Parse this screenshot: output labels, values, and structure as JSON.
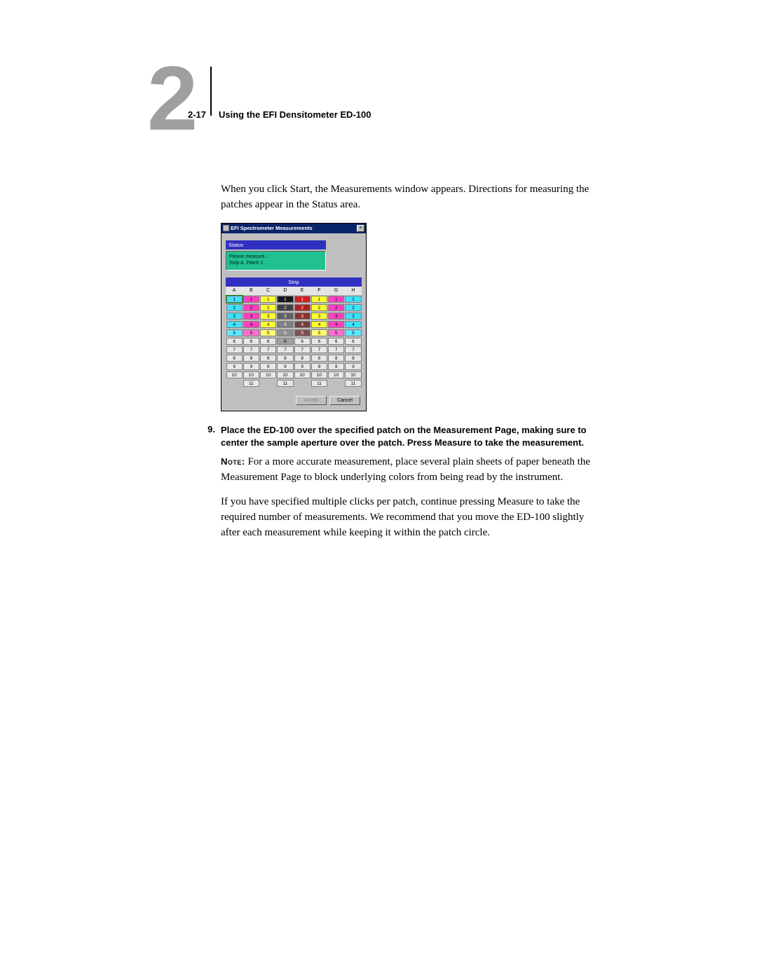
{
  "header": {
    "chapter_number": "2",
    "page_ref": "2-17",
    "title": "Using the EFI Densitometer ED-100"
  },
  "body": {
    "intro": "When you click Start, the Measurements window appears. Directions for measuring the patches appear in the Status area.",
    "step_number": "9.",
    "step_text": "Place the ED-100 over the specified patch on the Measurement Page, making sure to center the sample aperture over the patch. Press Measure to take the measurement.",
    "note_label": "Note:",
    "note_text": " For a more accurate measurement, place several plain sheets of paper beneath the Measurement Page to block underlying colors from being read by the instrument.",
    "para2": "If you have specified multiple clicks per patch, continue pressing Measure to take the required number of measurements. We recommend that you move the ED-100 slightly after each measurement while keeping it within the patch circle."
  },
  "screenshot": {
    "title": "EFI Spectrometer Measurements",
    "close_glyph": "×",
    "status_label": "Status",
    "status_line1": "Please measure...",
    "status_line2": "Strip A, Patch 1",
    "strip_header": "Strip",
    "columns": [
      "A",
      "B",
      "C",
      "D",
      "E",
      "F",
      "G",
      "H"
    ],
    "row_colors": [
      "#40e0ff",
      "#ff40c0",
      "#ffff30",
      "#181818",
      "#d02020",
      "#ffff30",
      "#ff40c0",
      "#40e0ff",
      "#40e0ff",
      "#ff40c0",
      "#ffff30",
      "#404040",
      "#b02020",
      "#ffff30",
      "#ff40c0",
      "#40e0ff",
      "#40e0ff",
      "#ff40c0",
      "#ffff30",
      "#606060",
      "#903030",
      "#ffff30",
      "#ff40c0",
      "#40e0ff",
      "#40e0ff",
      "#ff40c0",
      "#ffff30",
      "#808080",
      "#704040",
      "#ffff30",
      "#ff40c0",
      "#40e0ff",
      "#60e8ff",
      "#ff70d0",
      "#ffff70",
      "#909090",
      "#805050",
      "#ffff70",
      "#ff70d0",
      "#60e8ff",
      "#e8e8e8",
      "#e8e8e8",
      "#e8e8e8",
      "#a0a0a0",
      "#e8e8e8",
      "#e8e8e8",
      "#e8e8e8",
      "#e8e8e8",
      "#e8e8e8",
      "#e8e8e8",
      "#e8e8e8",
      "#e8e8e8",
      "#e8e8e8",
      "#e8e8e8",
      "#e8e8e8",
      "#e8e8e8",
      "#e8e8e8",
      "#e8e8e8",
      "#e8e8e8",
      "#e8e8e8",
      "#e8e8e8",
      "#e8e8e8",
      "#e8e8e8",
      "#e8e8e8",
      "#e8e8e8",
      "#e8e8e8",
      "#e8e8e8",
      "#e8e8e8",
      "#e8e8e8",
      "#e8e8e8",
      "#e8e8e8",
      "#e8e8e8",
      "#e8e8e8",
      "#e8e8e8",
      "#e8e8e8",
      "#e8e8e8",
      "#e8e8e8",
      "#e8e8e8",
      "#e8e8e8",
      "#e8e8e8"
    ],
    "rows_main": 10,
    "row11_cols": [
      1,
      3,
      5,
      7
    ],
    "row11_label": "11",
    "accept_label": "Accept",
    "cancel_label": "Cancel"
  }
}
